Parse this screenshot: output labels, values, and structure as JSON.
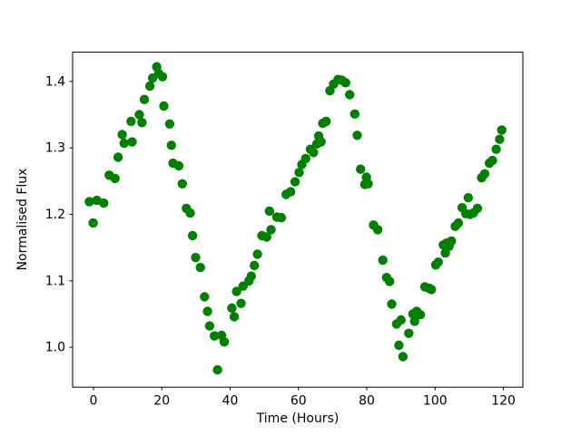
{
  "figure": {
    "background": "#ffffff",
    "plot_bg": "#ffffff",
    "spine_color": "#000000"
  },
  "chart_data": {
    "type": "scatter",
    "title": "",
    "xlabel": "Time (Hours)",
    "ylabel": "Normalised Flux",
    "marker": {
      "shape": "circle",
      "color": "#008000",
      "radius_px": 5.2
    },
    "grid": false,
    "legend": null,
    "xlim": [
      -6.1,
      125.7
    ],
    "ylim": [
      0.94,
      1.444
    ],
    "xticks": [
      0,
      20,
      40,
      60,
      80,
      100,
      120
    ],
    "yticks": [
      1.0,
      1.1,
      1.2,
      1.3,
      1.4
    ],
    "points": [
      [
        -1.2,
        1.219
      ],
      [
        -0.1,
        1.187
      ],
      [
        1.0,
        1.221
      ],
      [
        3.0,
        1.217
      ],
      [
        4.6,
        1.259
      ],
      [
        6.3,
        1.254
      ],
      [
        7.2,
        1.286
      ],
      [
        8.4,
        1.32
      ],
      [
        9.0,
        1.307
      ],
      [
        11.0,
        1.34
      ],
      [
        11.3,
        1.309
      ],
      [
        13.4,
        1.35
      ],
      [
        14.2,
        1.338
      ],
      [
        14.9,
        1.373
      ],
      [
        16.5,
        1.393
      ],
      [
        17.3,
        1.405
      ],
      [
        18.5,
        1.422
      ],
      [
        19.1,
        1.412
      ],
      [
        20.2,
        1.407
      ],
      [
        20.6,
        1.363
      ],
      [
        22.3,
        1.336
      ],
      [
        22.8,
        1.304
      ],
      [
        23.3,
        1.277
      ],
      [
        25.0,
        1.273
      ],
      [
        26.0,
        1.246
      ],
      [
        27.2,
        1.209
      ],
      [
        28.3,
        1.202
      ],
      [
        29.0,
        1.168
      ],
      [
        29.9,
        1.135
      ],
      [
        31.3,
        1.12
      ],
      [
        32.5,
        1.076
      ],
      [
        33.4,
        1.054
      ],
      [
        34.0,
        1.032
      ],
      [
        35.4,
        1.017
      ],
      [
        36.3,
        0.966
      ],
      [
        37.5,
        1.018
      ],
      [
        38.3,
        1.008
      ],
      [
        40.5,
        1.059
      ],
      [
        41.2,
        1.046
      ],
      [
        41.9,
        1.084
      ],
      [
        43.2,
        1.066
      ],
      [
        43.8,
        1.092
      ],
      [
        45.5,
        1.1
      ],
      [
        46.2,
        1.107
      ],
      [
        47.1,
        1.123
      ],
      [
        48.0,
        1.14
      ],
      [
        49.3,
        1.168
      ],
      [
        50.7,
        1.166
      ],
      [
        51.5,
        1.205
      ],
      [
        52.0,
        1.177
      ],
      [
        53.7,
        1.196
      ],
      [
        55.0,
        1.195
      ],
      [
        56.4,
        1.23
      ],
      [
        57.7,
        1.234
      ],
      [
        59.0,
        1.249
      ],
      [
        60.2,
        1.263
      ],
      [
        61.0,
        1.275
      ],
      [
        62.1,
        1.284
      ],
      [
        63.5,
        1.298
      ],
      [
        64.4,
        1.293
      ],
      [
        65.4,
        1.306
      ],
      [
        65.9,
        1.318
      ],
      [
        66.6,
        1.309
      ],
      [
        67.1,
        1.337
      ],
      [
        68.1,
        1.34
      ],
      [
        69.2,
        1.386
      ],
      [
        70.3,
        1.396
      ],
      [
        71.6,
        1.403
      ],
      [
        72.7,
        1.402
      ],
      [
        73.8,
        1.398
      ],
      [
        75.0,
        1.38
      ],
      [
        76.5,
        1.351
      ],
      [
        77.2,
        1.319
      ],
      [
        78.2,
        1.268
      ],
      [
        79.4,
        1.245
      ],
      [
        79.9,
        1.256
      ],
      [
        80.4,
        1.246
      ],
      [
        82.0,
        1.184
      ],
      [
        83.2,
        1.177
      ],
      [
        84.7,
        1.131
      ],
      [
        85.8,
        1.105
      ],
      [
        86.7,
        1.099
      ],
      [
        87.3,
        1.065
      ],
      [
        88.7,
        1.035
      ],
      [
        89.4,
        1.003
      ],
      [
        90.0,
        1.041
      ],
      [
        90.6,
        0.986
      ],
      [
        92.3,
        1.021
      ],
      [
        93.5,
        1.05
      ],
      [
        94.0,
        1.039
      ],
      [
        94.6,
        1.054
      ],
      [
        95.7,
        1.049
      ],
      [
        97.0,
        1.091
      ],
      [
        98.2,
        1.089
      ],
      [
        98.9,
        1.087
      ],
      [
        100.2,
        1.124
      ],
      [
        100.9,
        1.128
      ],
      [
        102.4,
        1.154
      ],
      [
        103.0,
        1.142
      ],
      [
        103.4,
        1.157
      ],
      [
        104.1,
        1.152
      ],
      [
        104.8,
        1.16
      ],
      [
        105.9,
        1.182
      ],
      [
        106.8,
        1.187
      ],
      [
        107.9,
        1.21
      ],
      [
        109.0,
        1.201
      ],
      [
        109.7,
        1.225
      ],
      [
        110.2,
        1.2
      ],
      [
        111.2,
        1.202
      ],
      [
        112.4,
        1.209
      ],
      [
        113.6,
        1.255
      ],
      [
        114.5,
        1.261
      ],
      [
        115.9,
        1.277
      ],
      [
        116.8,
        1.281
      ],
      [
        117.9,
        1.298
      ],
      [
        118.9,
        1.313
      ],
      [
        119.5,
        1.327
      ]
    ]
  }
}
